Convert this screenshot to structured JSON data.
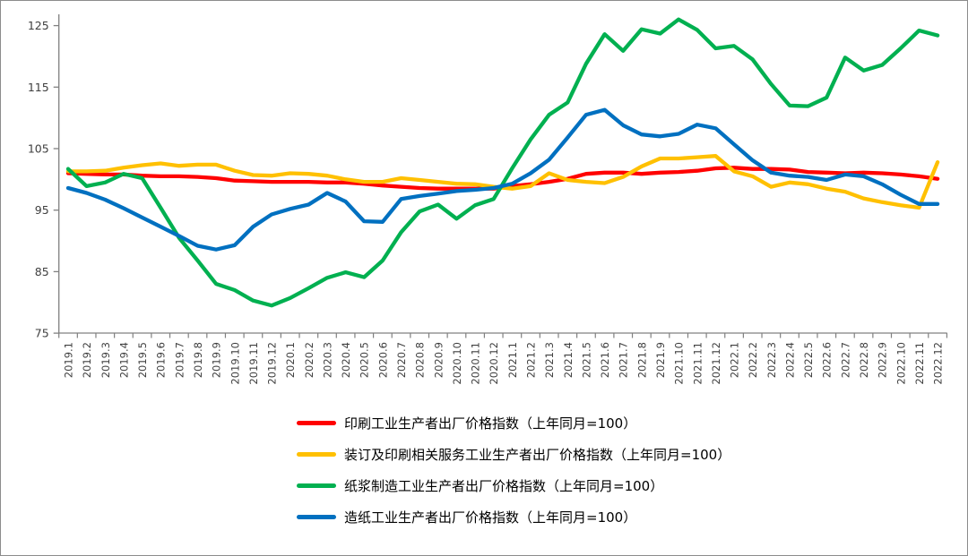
{
  "chart_data": {
    "type": "line",
    "x": [
      "2019.1",
      "2019.2",
      "2019.3",
      "2019.4",
      "2019.5",
      "2019.6",
      "2019.7",
      "2019.8",
      "2019.9",
      "2019.10",
      "2019.11",
      "2019.12",
      "2020.1",
      "2020.2",
      "2020.3",
      "2020.4",
      "2020.5",
      "2020.6",
      "2020.7",
      "2020.8",
      "2020.9",
      "2020.10",
      "2020.11",
      "2020.12",
      "2021.1",
      "2021.2",
      "2021.3",
      "2021.4",
      "2021.5",
      "2021.6",
      "2021.7",
      "2021.8",
      "2021.9",
      "2021.10",
      "2021.11",
      "2021.12",
      "2022.1",
      "2022.2",
      "2022.3",
      "2022.4",
      "2022.5",
      "2022.6",
      "2022.7",
      "2022.8",
      "2022.9",
      "2022.10",
      "2022.11",
      "2022.12"
    ],
    "yticks": [
      75,
      85,
      95,
      105,
      115,
      125
    ],
    "ylim": [
      75,
      126.5
    ],
    "grid": false,
    "legend_position": "bottom",
    "title": "",
    "xlabel": "",
    "ylabel": "",
    "series": [
      {
        "name": "印刷工业生产者出厂价格指数（上年同月=100）",
        "color": "#FF0000",
        "values": [
          101.0,
          100.9,
          100.8,
          100.8,
          100.6,
          100.5,
          100.5,
          100.4,
          100.2,
          99.8,
          99.7,
          99.6,
          99.6,
          99.6,
          99.5,
          99.5,
          99.3,
          99.0,
          98.8,
          98.6,
          98.5,
          98.5,
          98.5,
          98.5,
          98.9,
          99.2,
          99.6,
          100.1,
          100.9,
          101.1,
          101.1,
          100.9,
          101.1,
          101.2,
          101.4,
          101.8,
          101.9,
          101.7,
          101.7,
          101.6,
          101.2,
          101.1,
          101.0,
          101.1,
          101.0,
          100.8,
          100.5,
          100.1
        ]
      },
      {
        "name": "装订及印刷相关服务工业生产者出厂价格指数（上年同月=100）",
        "color": "#FFC000",
        "values": [
          101.3,
          101.3,
          101.4,
          101.9,
          102.3,
          102.6,
          102.2,
          102.4,
          102.4,
          101.4,
          100.7,
          100.6,
          101.0,
          100.9,
          100.6,
          100.0,
          99.6,
          99.6,
          100.2,
          99.9,
          99.6,
          99.3,
          99.2,
          98.8,
          98.5,
          98.9,
          101.0,
          99.9,
          99.6,
          99.4,
          100.4,
          102.1,
          103.4,
          103.4,
          103.6,
          103.8,
          101.3,
          100.5,
          98.8,
          99.5,
          99.2,
          98.5,
          98.0,
          96.9,
          96.3,
          95.8,
          95.4,
          102.8
        ]
      },
      {
        "name": "纸浆制造工业生产者出厂价格指数（上年同月=100）",
        "color": "#00B050",
        "values": [
          101.7,
          98.9,
          99.5,
          100.9,
          100.2,
          95.4,
          90.5,
          86.8,
          83.0,
          82.0,
          80.3,
          79.5,
          80.7,
          82.3,
          84.0,
          84.9,
          84.1,
          86.8,
          91.4,
          94.8,
          95.9,
          93.6,
          95.8,
          96.8,
          101.8,
          106.5,
          110.5,
          112.5,
          118.8,
          123.6,
          120.9,
          124.4,
          123.7,
          126.0,
          124.3,
          121.3,
          121.7,
          119.5,
          115.5,
          112.0,
          111.9,
          113.3,
          119.8,
          117.7,
          118.6,
          121.3,
          124.2,
          123.4
        ]
      },
      {
        "name": "造纸工业生产者出厂价格指数（上年同月=100）",
        "color": "#0070C0",
        "values": [
          98.6,
          97.8,
          96.7,
          95.3,
          93.8,
          92.3,
          90.8,
          89.2,
          88.6,
          89.3,
          92.3,
          94.3,
          95.2,
          95.9,
          97.8,
          96.4,
          93.2,
          93.1,
          96.8,
          97.3,
          97.7,
          98.1,
          98.3,
          98.6,
          99.3,
          101.0,
          103.2,
          106.8,
          110.5,
          111.3,
          108.8,
          107.3,
          107.0,
          107.4,
          108.9,
          108.3,
          105.7,
          103.1,
          101.1,
          100.6,
          100.4,
          99.9,
          100.8,
          100.5,
          99.2,
          97.5,
          96.0,
          96.0
        ]
      }
    ]
  }
}
